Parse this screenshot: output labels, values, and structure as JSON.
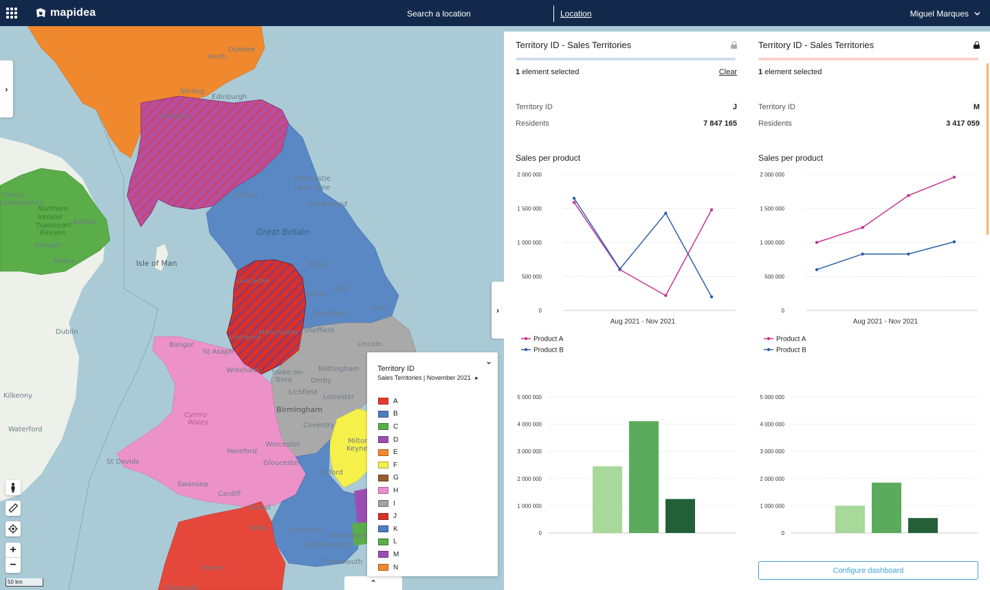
{
  "app": {
    "logo": "mapidea",
    "search_label": "Search a location",
    "location_label": "Location",
    "user_name": "Miguel Marques"
  },
  "map": {
    "labels": {
      "perth": "Perth",
      "dundee": "Dundee",
      "edinburgh": "Edinburgh",
      "stirling": "Stirling",
      "glasgow": "Glasgow",
      "newcastle": "Newcastle",
      "upon_tyne": "upon Tyne",
      "sunderland": "Sunderland",
      "carlisle": "Carlisle",
      "great_britain": "Great Britain",
      "ripon": "Ripon",
      "york": "York",
      "leeds": "Leeds",
      "hull": "Hull",
      "wakefield": "Wakefield",
      "sheffield": "Sheffield",
      "manchester": "Manchester",
      "liverpool": "Liverpool",
      "lancaster": "Lancaster",
      "lincoln": "Lincoln",
      "nottingham": "Nottingham",
      "derby": "Derby",
      "stoke": "Stoke-on-",
      "trent": "Trent",
      "lichfield": "Lichfield",
      "leicester": "Leicester",
      "birmingham": "Birmingham",
      "coventry": "Coventry",
      "milton": "Milton",
      "keynes": "Keynes",
      "oxford": "Oxford",
      "worcester": "Worcester",
      "gloucester": "Gloucester",
      "hereford": "Hereford",
      "cymru": "Cymru",
      "wales": "Wales",
      "swansea": "Swansea",
      "cardiff": "Cardiff",
      "bristol": "Bristol",
      "wells": "Wells",
      "salisbury": "Salisbury",
      "winchester": "Winchester",
      "southampton": "Southampton",
      "portsmouth": "Portsmouth",
      "exeter": "Exeter",
      "plymouth": "Plymouth",
      "st_davids": "St Davids",
      "st_asaph": "St Asaph",
      "bangor": "Bangor",
      "wrexham": "Wrexham",
      "isle_of_man": "Isle of Man",
      "northern": "Northern",
      "ireland": "Ireland",
      "tuaisceart": "Tuaisceart",
      "eireann": "Éireann",
      "belfast": "Belfast",
      "armagh": "Armagh",
      "newry": "Newry",
      "derry": "Derry/",
      "londonderry": "Londonderry",
      "dublin": "Dublin",
      "kilkenny": "Kilkenny",
      "waterford": "Waterford"
    },
    "scale_label": "50 km"
  },
  "legend": {
    "title": "Territory ID",
    "subtitle": "Sales Territories",
    "period": "November 2021",
    "items": [
      {
        "label": "A",
        "color": "#e8392d"
      },
      {
        "label": "B",
        "color": "#4e7dc2"
      },
      {
        "label": "C",
        "color": "#5aad48"
      },
      {
        "label": "D",
        "color": "#9a4fb0"
      },
      {
        "label": "E",
        "color": "#f0882e"
      },
      {
        "label": "F",
        "color": "#f5f04a"
      },
      {
        "label": "G",
        "color": "#9a5c32"
      },
      {
        "label": "H",
        "color": "#ec8fcd"
      },
      {
        "label": "I",
        "color": "#a3a3a3"
      },
      {
        "label": "J",
        "color": "#d8302a"
      },
      {
        "label": "K",
        "color": "#4e7dc2"
      },
      {
        "label": "L",
        "color": "#5aad48"
      },
      {
        "label": "M",
        "color": "#9a4fb0"
      },
      {
        "label": "N",
        "color": "#f0882e"
      }
    ]
  },
  "panels": [
    {
      "title": "Territory ID - Sales Territories",
      "bar_color": "#cfdcec",
      "lock_color": "#aaaaaa",
      "selected_count": "1",
      "selected_text": "element selected",
      "clear_label": "Clear",
      "territory_label": "Territory ID",
      "territory_value": "J",
      "residents_label": "Residents",
      "residents_value": "7 847 165",
      "section_title": "Sales per product"
    },
    {
      "title": "Territory ID - Sales Territories",
      "bar_color": "#f6d0c8",
      "lock_color": "#1d1d1f",
      "selected_count": "1",
      "selected_text": "element selected",
      "territory_label": "Territory ID",
      "territory_value": "M",
      "residents_label": "Residents",
      "residents_value": "3 417 059",
      "section_title": "Sales per product"
    }
  ],
  "configure_label": "Configure dashboard",
  "chart_data": [
    {
      "type": "line",
      "title": "Sales per product",
      "xlabel": "Aug 2021 - Nov 2021",
      "ylim": [
        0,
        2000000
      ],
      "yticks": [
        "2 000 000",
        "1 500 000",
        "1 000 000",
        "500 000",
        "0"
      ],
      "x": [
        1,
        2,
        3,
        4
      ],
      "series": [
        {
          "name": "Product A",
          "color": "#c8318f",
          "values": [
            1590000,
            600000,
            220000,
            1480000
          ]
        },
        {
          "name": "Product B",
          "color": "#2a5fa8",
          "values": [
            1650000,
            610000,
            1430000,
            200000
          ]
        }
      ]
    },
    {
      "type": "line",
      "title": "Sales per product",
      "xlabel": "Aug 2021 - Nov 2021",
      "ylim": [
        0,
        2000000
      ],
      "yticks": [
        "2 000 000",
        "1 500 000",
        "1 000 000",
        "500 000",
        "0"
      ],
      "x": [
        1,
        2,
        3,
        4
      ],
      "series": [
        {
          "name": "Product A",
          "color": "#c8318f",
          "values": [
            1000000,
            1220000,
            1690000,
            1960000
          ]
        },
        {
          "name": "Product B",
          "color": "#2a5fa8",
          "values": [
            600000,
            830000,
            830000,
            1010000
          ]
        }
      ]
    },
    {
      "type": "bar",
      "ylim": [
        0,
        5000000
      ],
      "yticks": [
        "5 000 000",
        "4 000 000",
        "3 000 000",
        "2 000 000",
        "1 000 000",
        "0"
      ],
      "values": [
        2450000,
        4110000,
        1250000
      ],
      "colors": [
        "#a8d89a",
        "#5aab5b",
        "#23603a"
      ]
    },
    {
      "type": "bar",
      "ylim": [
        0,
        5000000
      ],
      "yticks": [
        "5 000 000",
        "4 000 000",
        "3 000 000",
        "2 000 000",
        "1 000 000",
        "0"
      ],
      "values": [
        1000000,
        1850000,
        550000
      ],
      "colors": [
        "#a8d89a",
        "#5aab5b",
        "#23603a"
      ]
    }
  ]
}
